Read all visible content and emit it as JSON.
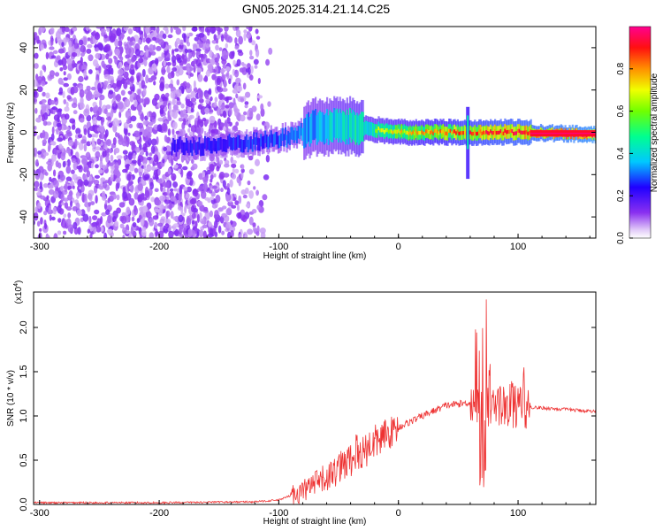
{
  "title": "GN05.2025.314.21.14.C25",
  "colors": {
    "line": "#ee3333",
    "axis": "#000000",
    "colormap": [
      "#ffffff",
      "#ece0f8",
      "#a070e8",
      "#6a00e0",
      "#0000ff",
      "#00c0ff",
      "#00ff80",
      "#60ff00",
      "#ffff00",
      "#ff8000",
      "#ff0000",
      "#ff00a0"
    ]
  },
  "chart_data": [
    {
      "type": "heatmap",
      "title": "GN05.2025.314.21.14.C25",
      "xlabel": "Height of straight line (km)",
      "ylabel": "Frequency (Hz)",
      "xlim": [
        -305,
        165
      ],
      "ylim": [
        -50,
        50
      ],
      "xticks": [
        -300,
        -200,
        -100,
        0,
        100
      ],
      "yticks": [
        -40,
        -20,
        0,
        20,
        40
      ],
      "colorbar": {
        "label": "Normalized spectral amplitude",
        "range": [
          0.0,
          1.0
        ],
        "ticks": [
          "0.0",
          "0.2",
          "0.4",
          "0.6",
          "0.8"
        ]
      },
      "features": [
        {
          "name": "noise-region",
          "x_range": [
            -305,
            -110
          ],
          "freq_range": [
            -50,
            50
          ],
          "amplitude": 0.1
        },
        {
          "name": "main-band",
          "x_range": [
            -190,
            165
          ],
          "center_freq": [
            [
              -190,
              -7
            ],
            [
              -150,
              -6
            ],
            [
              -110,
              -4
            ],
            [
              -90,
              -2
            ],
            [
              -75,
              2
            ],
            [
              -50,
              3
            ],
            [
              -30,
              2
            ],
            [
              0,
              0
            ],
            [
              60,
              0
            ],
            [
              100,
              0
            ],
            [
              165,
              -1
            ]
          ],
          "amplitude": [
            [
              -190,
              0.25
            ],
            [
              -120,
              0.3
            ],
            [
              -75,
              0.4
            ],
            [
              -40,
              0.5
            ],
            [
              0,
              0.6
            ],
            [
              60,
              0.75
            ],
            [
              100,
              0.8
            ],
            [
              165,
              0.9
            ]
          ]
        },
        {
          "name": "spike",
          "x": 58,
          "freq_range": [
            -22,
            12
          ]
        }
      ]
    },
    {
      "type": "line",
      "xlabel": "Height of straight line (km)",
      "ylabel": "SNR (10 * v/v)",
      "scale_label": "(x10",
      "scale_exp": "4",
      "xlim": [
        -305,
        165
      ],
      "ylim": [
        0,
        2.4
      ],
      "xticks": [
        -300,
        -200,
        -100,
        0,
        100
      ],
      "yticks": [
        "0.0",
        "0.5",
        "1.0",
        "1.5",
        "2.0"
      ],
      "envelope": [
        [
          -305,
          0.02
        ],
        [
          -200,
          0.02
        ],
        [
          -120,
          0.03
        ],
        [
          -100,
          0.05
        ],
        [
          -80,
          0.15
        ],
        [
          -60,
          0.3
        ],
        [
          -40,
          0.5
        ],
        [
          -20,
          0.7
        ],
        [
          0,
          0.87
        ],
        [
          20,
          1.0
        ],
        [
          40,
          1.12
        ],
        [
          60,
          1.15
        ],
        [
          80,
          1.12
        ],
        [
          110,
          1.1
        ],
        [
          165,
          1.05
        ]
      ],
      "spikes": [
        [
          -50,
          0.6
        ],
        [
          -35,
          0.8
        ],
        [
          -22,
          0.65
        ],
        [
          -10,
          0.75
        ],
        [
          65,
          2.0
        ],
        [
          68,
          1.9
        ],
        [
          70,
          2.1
        ],
        [
          73,
          2.35
        ],
        [
          76,
          1.6
        ],
        [
          85,
          1.35
        ],
        [
          95,
          1.4
        ],
        [
          105,
          1.6
        ]
      ]
    }
  ]
}
